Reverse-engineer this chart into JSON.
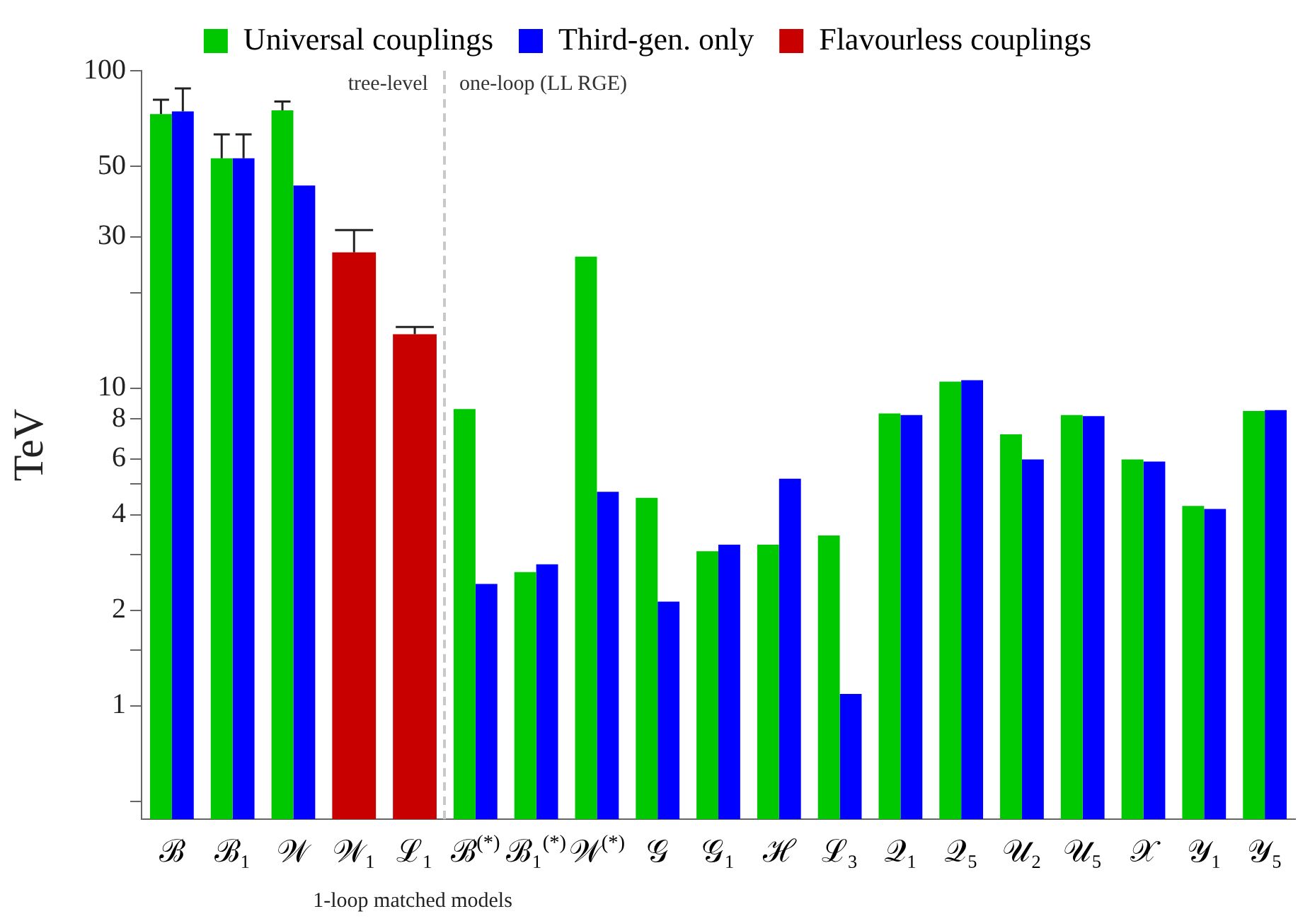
{
  "chart_data": {
    "type": "bar",
    "ylabel": "TeV",
    "xlabel": "1-loop matched models",
    "categories": [
      "ℬ",
      "ℬ₁",
      "𝒲",
      "𝒲₁",
      "ℒ₁",
      "ℬ$^{(*)}$",
      "ℬ₁$^{(*)}$",
      "𝒲$^{(*)}$",
      "𝒢",
      "𝒢₁",
      "ℋ",
      "ℒ₃",
      "𝒬₁",
      "𝒬₅",
      "𝒰₂",
      "𝒰₅",
      "𝒳",
      "𝒴₁",
      "𝒴₅"
    ],
    "series": [
      {
        "name": "Universal couplings",
        "color": "#00c800",
        "values": [
          73,
          53,
          75,
          null,
          null,
          8.6,
          2.64,
          26,
          4.52,
          3.07,
          3.22,
          3.44,
          8.33,
          10.5,
          7.16,
          8.24,
          5.97,
          4.26,
          8.48
        ],
        "errors": [
          [
            73,
            81
          ],
          [
            53,
            63
          ],
          [
            75,
            80
          ],
          null,
          null,
          null,
          null,
          null,
          null,
          null,
          null,
          null,
          null,
          null,
          null,
          null,
          null,
          null,
          null
        ]
      },
      {
        "name": "Third-gen. only",
        "color": "#0000ff",
        "values": [
          74.5,
          53,
          43.5,
          null,
          null,
          2.42,
          2.79,
          4.72,
          2.13,
          3.22,
          5.19,
          1.09,
          8.24,
          10.6,
          5.97,
          8.18,
          5.88,
          4.17,
          8.54
        ],
        "errors": [
          [
            74.5,
            88
          ],
          [
            53,
            63
          ],
          null,
          null,
          null,
          null,
          null,
          null,
          null,
          null,
          null,
          null,
          null,
          null,
          null,
          null,
          null,
          null,
          null
        ]
      },
      {
        "name": "Flavourless couplings",
        "color": "#c80000",
        "values": [
          null,
          null,
          null,
          26.8,
          14.8,
          null,
          null,
          null,
          null,
          null,
          null,
          null,
          null,
          null,
          null,
          null,
          null,
          null,
          null
        ],
        "errors": [
          null,
          null,
          null,
          [
            26.8,
            31.5
          ],
          [
            14.8,
            15.6
          ],
          null,
          null,
          null,
          null,
          null,
          null,
          null,
          null,
          null,
          null,
          null,
          null,
          null,
          null
        ]
      }
    ],
    "log": "y",
    "ylim": [
      0.44,
      100
    ],
    "yticks": [
      {
        "value": 0.5,
        "label": null
      },
      1,
      {
        "value": 1.5,
        "label": null
      },
      2,
      {
        "value": 3,
        "label": null
      },
      4,
      {
        "value": 5,
        "label": null
      },
      6,
      8,
      10,
      {
        "value": 20,
        "label": null
      },
      30,
      50,
      100
    ],
    "grid": false,
    "legend": "top",
    "annotations": [
      "tree-level",
      "one-loop (LL RGE)"
    ]
  }
}
